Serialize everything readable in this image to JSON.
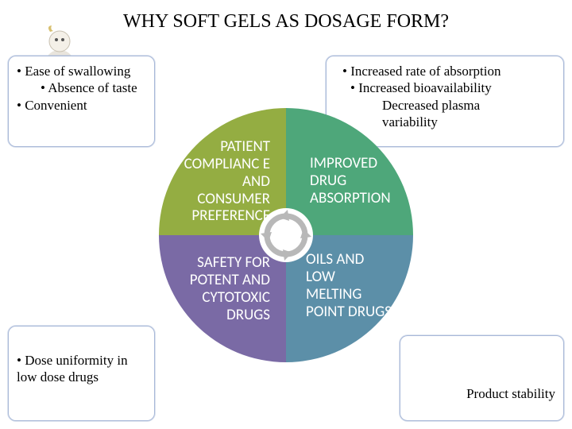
{
  "title": "WHY SOFT GELS AS DOSAGE FORM?",
  "boxes": {
    "tl": {
      "items": [
        "Ease of swallowing",
        "Absence of taste",
        "Convenient"
      ]
    },
    "tr": {
      "line1": "Increased rate of  absorption",
      "line2": "Increased bioavailability",
      "line3": "Decreased plasma",
      "line4": "variability"
    },
    "bl": {
      "items": [
        "Dose uniformity in low dose drugs"
      ]
    },
    "br": {
      "text": "Product stability"
    }
  },
  "pie": {
    "quadrants": {
      "tl": {
        "label": "PATIENT COMPLIANC E AND CONSUMER PREFERENCE",
        "color": "#94ad42"
      },
      "tr": {
        "label": "IMPROVED DRUG ABSORPTION",
        "color": "#4ea77a"
      },
      "bl": {
        "label": "SAFETY FOR POTENT AND CYTOTOXIC DRUGS",
        "color": "#7a6aa5"
      },
      "br": {
        "label": "OILS AND LOW MELTING POINT DRUGS",
        "color": "#5c8fa8"
      }
    },
    "hub_arrow_color": "#b8b8b8"
  },
  "style": {
    "box_border": "#a8b8d8",
    "title_fontsize": 24,
    "body_fontsize": 17,
    "quadrant_fontsize": 19,
    "quadrant_font": "Calibri"
  }
}
